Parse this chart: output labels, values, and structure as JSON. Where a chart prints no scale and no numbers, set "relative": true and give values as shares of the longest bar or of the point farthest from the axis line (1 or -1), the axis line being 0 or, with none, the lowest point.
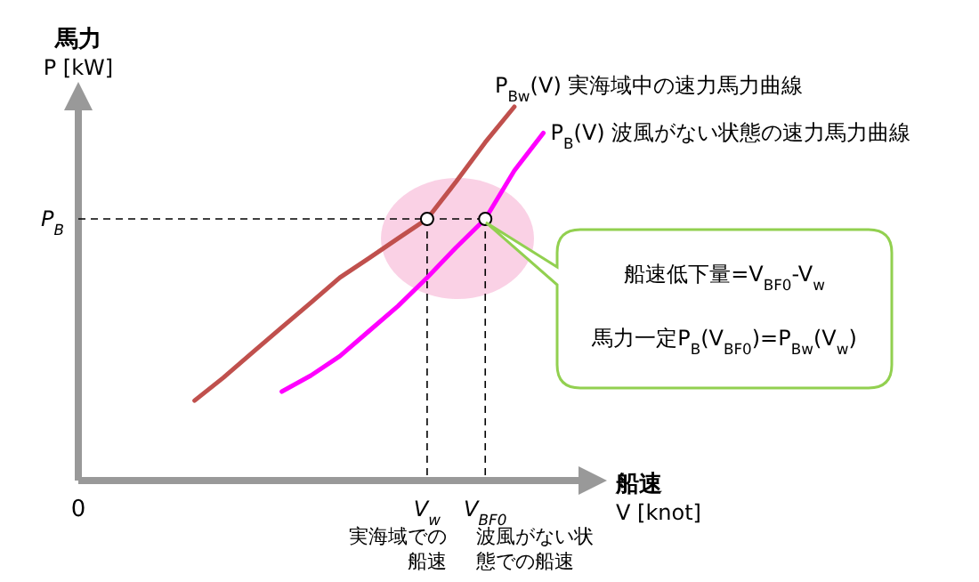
{
  "chart_data": {
    "type": "line",
    "relative": true,
    "xlabel": "船速\nV [knot]",
    "ylabel": "馬力\nP [kW]",
    "categories": [
      "0",
      null,
      null,
      null,
      null,
      null,
      null,
      null,
      null,
      null,
      null,
      null,
      "V$_{w}$",
      null,
      "V$_{BF0}$",
      null,
      null,
      null
    ],
    "series": [
      {
        "name": "P$_{Bw}$(V) 実海域中の速力馬力曲線",
        "color": "#c0504d",
        "values": [
          null,
          null,
          null,
          null,
          0.214,
          0.276,
          0.343,
          0.41,
          0.476,
          0.543,
          0.595,
          0.648,
          0.7,
          0.8,
          0.905,
          1,
          null,
          null
        ]
      },
      {
        "name": "P$_{B}$(V) 波風がない状態の速力馬力曲線",
        "color": "#ff00ff",
        "values": [
          null,
          null,
          null,
          null,
          null,
          null,
          null,
          0.238,
          0.281,
          0.333,
          0.4,
          0.467,
          0.543,
          0.624,
          0.7,
          0.829,
          0.93,
          null
        ]
      },
      {
        "type": "scatter",
        "marker": "circle",
        "color": "#ffffff",
        "x": [
          "V$_{w}$",
          "V$_{BF0}$"
        ],
        "values": [
          0.7,
          0.7
        ]
      }
    ],
    "ref_lines": [
      {
        "axis": "y",
        "value": 0.7,
        "label": "P$_{B}$",
        "line_style": "dashed",
        "color": "#000000"
      },
      {
        "axis": "x",
        "value": "V$_{w}$",
        "line_style": "dashed",
        "color": "#000000"
      },
      {
        "axis": "x",
        "value": "V$_{BF0}$",
        "line_style": "dashed",
        "color": "#000000"
      }
    ],
    "annotations": [
      "船速低下量=V$_{BF0}$-V$_{w}$",
      "馬力一定P$_{B}$(V$_{BF0}$)=P$_{Bw}$(V$_{w}$)",
      "実海域での船速",
      "波風がない状態での船速"
    ]
  }
}
